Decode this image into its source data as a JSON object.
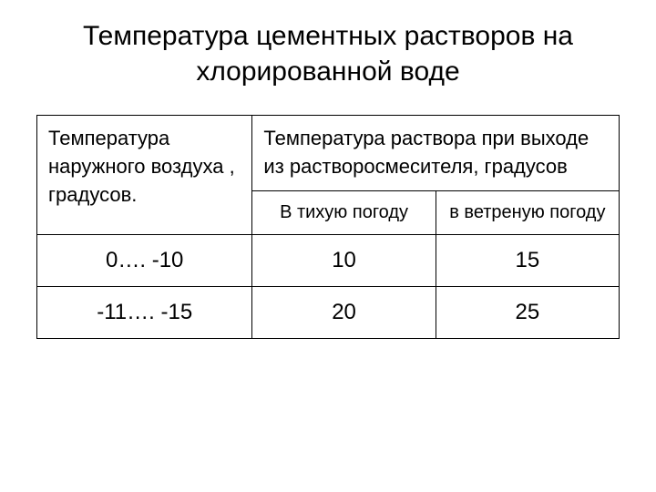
{
  "title": "Температура цементных растворов на хлорированной воде",
  "table": {
    "header_left": "Температура наружного воздуха , градусов.",
    "header_right": "Температура раствора при выходе из растворосмесителя, градусов",
    "sub_left": "В тихую погоду",
    "sub_right": "в ветреную погоду",
    "rows": [
      {
        "range": "0…. -10",
        "calm": "10",
        "windy": "15"
      },
      {
        "range": "-11…. -15",
        "calm": "20",
        "windy": "25"
      }
    ]
  },
  "colors": {
    "bg": "#ffffff",
    "text": "#000000",
    "border": "#000000"
  }
}
